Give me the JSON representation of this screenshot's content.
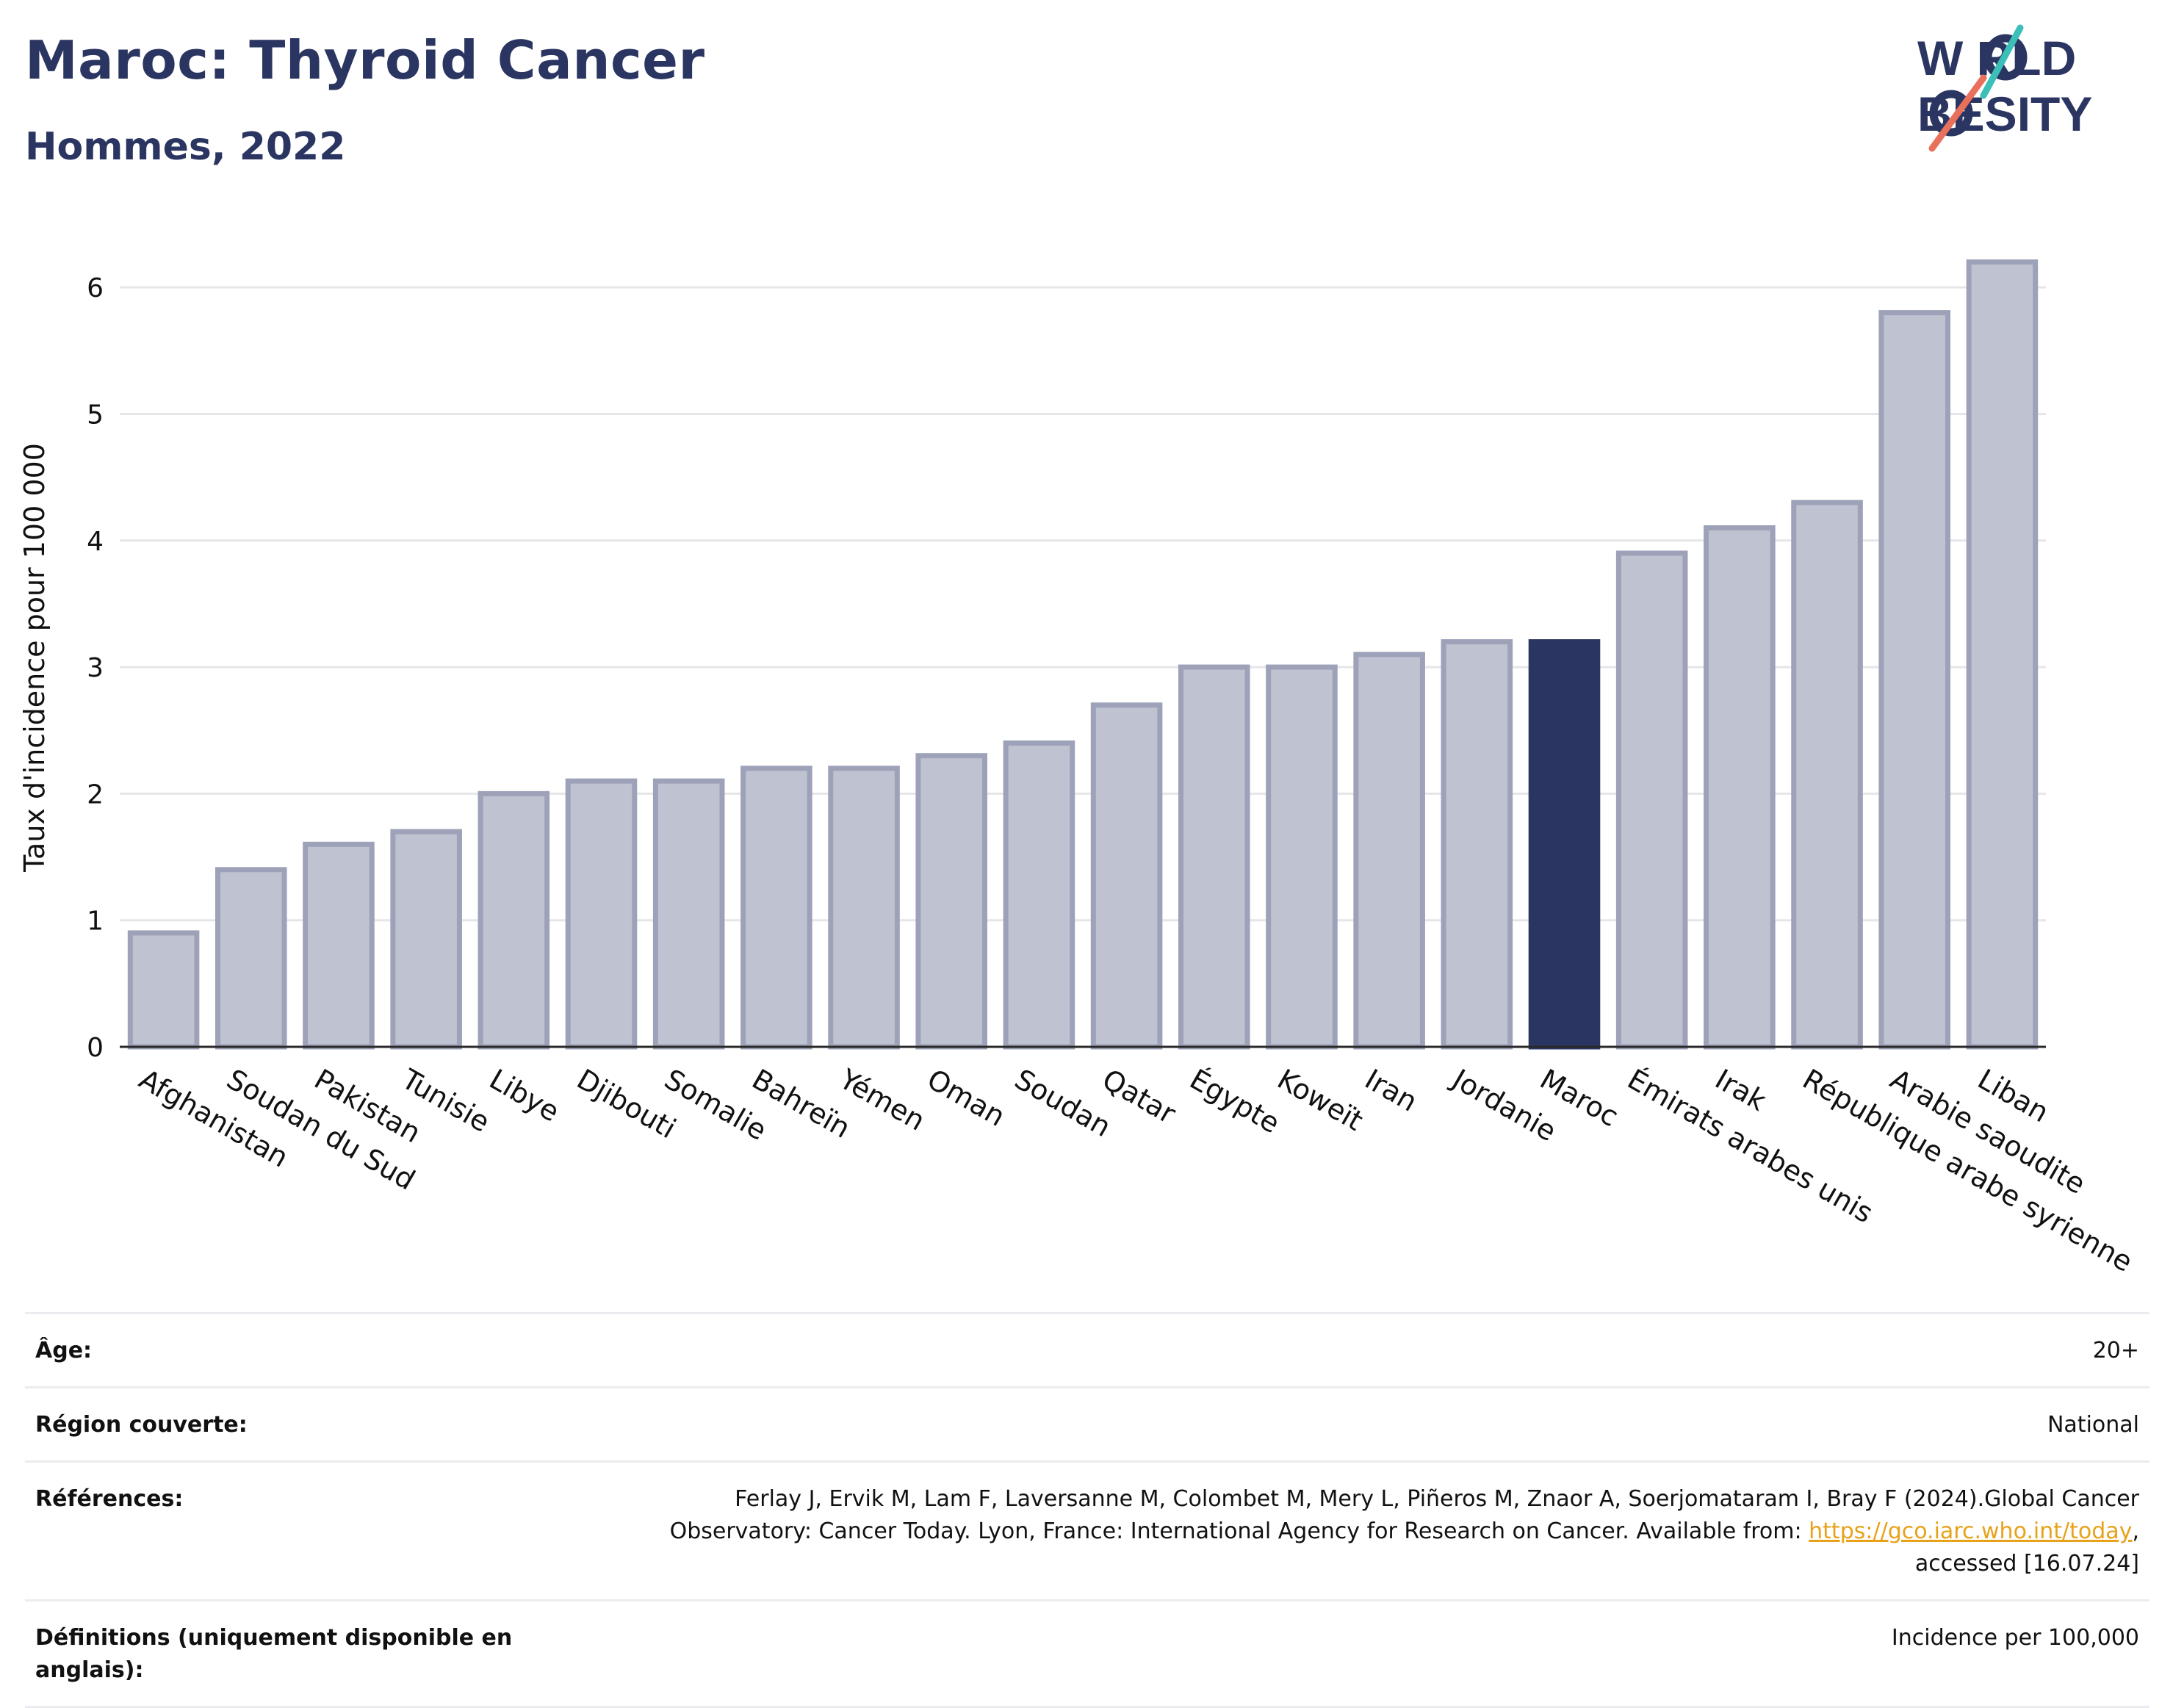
{
  "header": {
    "title": "Maroc: Thyroid Cancer",
    "subtitle": "Hommes, 2022"
  },
  "logo": {
    "line1": "W  RLD",
    "line2": "  BESITY",
    "colors": {
      "navy": "#2b3561",
      "teal": "#3bbfb8",
      "coral": "#e9705a"
    }
  },
  "chart_data": {
    "type": "bar",
    "title": "",
    "xlabel": "",
    "ylabel": "Taux d'incidence pour 100 000",
    "ylim": [
      0,
      6.5
    ],
    "yticks": [
      0,
      1,
      2,
      3,
      4,
      5,
      6
    ],
    "grid": true,
    "highlight": "Maroc",
    "colors": {
      "bar": "#bfc2d0",
      "bar_edge": "#9da2b9",
      "highlight": "#2b3561",
      "grid": "#e6e6ea",
      "axis": "#2a2a2a"
    },
    "categories": [
      "Afghanistan",
      "Soudan du Sud",
      "Pakistan",
      "Tunisie",
      "Libye",
      "Djibouti",
      "Somalie",
      "Bahreïn",
      "Yémen",
      "Oman",
      "Soudan",
      "Qatar",
      "Égypte",
      "Koweït",
      "Iran",
      "Jordanie",
      "Maroc",
      "Émirats arabes unis",
      "Irak",
      "République arabe syrienne",
      "Arabie saoudite",
      "Liban"
    ],
    "values": [
      0.9,
      1.4,
      1.6,
      1.7,
      2.0,
      2.1,
      2.1,
      2.2,
      2.2,
      2.3,
      2.4,
      2.7,
      3.0,
      3.0,
      3.1,
      3.2,
      3.2,
      3.9,
      4.1,
      4.3,
      5.8,
      6.2
    ]
  },
  "info": {
    "age_label": "Âge:",
    "age_value": "20+",
    "region_label": "Région couverte:",
    "region_value": "National",
    "references_label": "Références:",
    "references_text": "Ferlay J, Ervik M, Lam F, Laversanne M, Colombet M, Mery L, Piñeros M, Znaor A, Soerjomataram I, Bray F (2024).Global Cancer Observatory: Cancer Today. Lyon, France: International Agency for Research on Cancer. Available from: ",
    "references_link": "https://gco.iarc.who.int/today",
    "references_suffix": ", accessed [16.07.24]",
    "definitions_label": "Définitions (uniquement disponible en anglais):",
    "definitions_value": "Incidence per 100,000"
  }
}
